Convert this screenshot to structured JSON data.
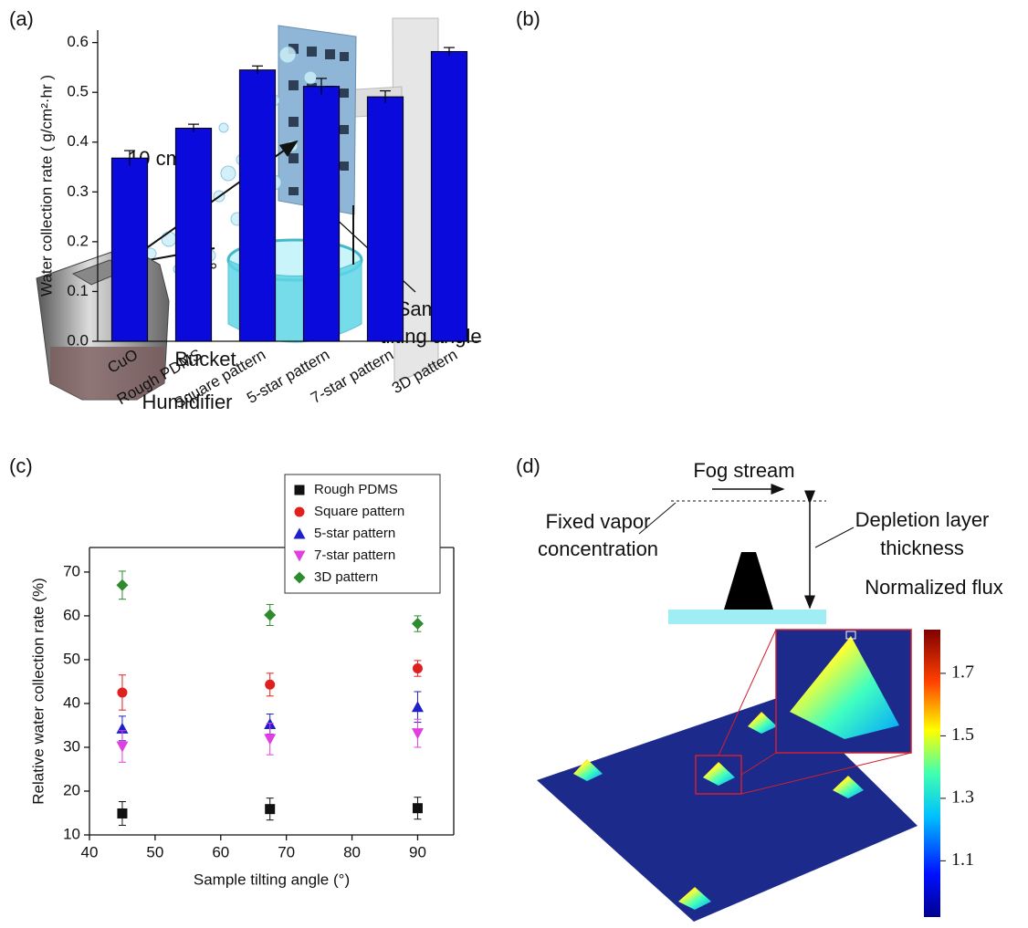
{
  "panels": {
    "a": "(a)",
    "b": "(b)",
    "c": "(c)",
    "d": "(d)"
  },
  "diagram_a": {
    "distance": "10 cm",
    "angle": "20°",
    "tilt_label": [
      "Sample",
      "tilting angle"
    ],
    "bucket": "Bucket",
    "humidifier": "Humidifier"
  },
  "diagram_d": {
    "fog_stream": "Fog stream",
    "fixed_vapor": [
      "Fixed vapor",
      "concentration"
    ],
    "depletion": [
      "Depletion layer",
      "thickness"
    ],
    "colorbar": {
      "label": "Normalized flux",
      "range": [
        0.92,
        1.84
      ],
      "ticks": [
        1.1,
        1.3,
        1.5,
        1.7
      ]
    }
  },
  "chart_data": [
    {
      "type": "bar",
      "ylabel": "Water collection rate ( g/cm²·hr )",
      "categories": [
        "CuO",
        "Rough PDMS",
        "Square pattern",
        "5-star pattern",
        "7-star pattern",
        "3D pattern"
      ],
      "values": [
        0.368,
        0.428,
        0.545,
        0.512,
        0.491,
        0.582
      ],
      "errors": [
        0.015,
        0.008,
        0.008,
        0.016,
        0.012,
        0.008
      ],
      "color": "#0a0adc",
      "ylim": [
        0,
        0.625
      ],
      "yticks": [
        {
          "value": 0,
          "label": "0.0"
        },
        0.1,
        0.2,
        0.3,
        0.4,
        0.5,
        0.6
      ]
    },
    {
      "type": "scatter",
      "xlabel": "Sample tilting angle (°)",
      "ylabel": "Relative water collection rate (%)",
      "x": [
        45,
        67.5,
        90
      ],
      "series": [
        {
          "name": "Rough PDMS",
          "color": "#111111",
          "marker": "square",
          "values": [
            14.9,
            15.9,
            16.1
          ],
          "errors": [
            2.7,
            2.5,
            2.5
          ]
        },
        {
          "name": "Square pattern",
          "color": "#e0201c",
          "marker": "circle",
          "values": [
            42.5,
            44.3,
            48.0
          ],
          "errors": [
            4.0,
            2.6,
            1.8
          ]
        },
        {
          "name": "5-star pattern",
          "color": "#2020c8",
          "marker": "triangle-up",
          "values": [
            34.3,
            35.3,
            39.2
          ],
          "errors": [
            2.8,
            2.3,
            3.5
          ]
        },
        {
          "name": "7-star pattern",
          "color": "#e040e0",
          "marker": "triangle-down",
          "values": [
            30.2,
            31.9,
            33.2
          ],
          "errors": [
            3.6,
            3.6,
            3.2
          ]
        },
        {
          "name": "3D pattern",
          "color": "#2e8b2e",
          "marker": "diamond",
          "values": [
            67.0,
            60.2,
            58.2
          ],
          "errors": [
            3.2,
            2.4,
            1.8
          ]
        }
      ],
      "xlim": [
        40,
        95.5
      ],
      "ylim": [
        10,
        75.6
      ],
      "xticks": [
        40,
        50,
        60,
        70,
        80,
        90
      ],
      "yticks": [
        10,
        20,
        30,
        40,
        50,
        60,
        70
      ],
      "legend": "upper right"
    }
  ]
}
